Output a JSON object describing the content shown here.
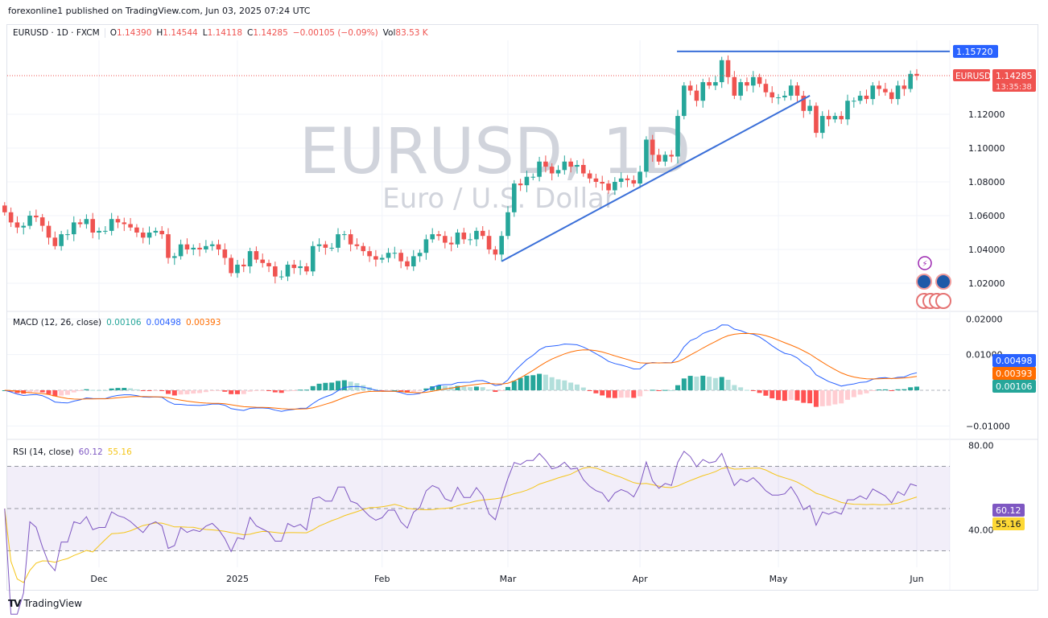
{
  "header": {
    "published": "forexonline1 published on TradingView.com, Jun 03, 2025 07:24 UTC"
  },
  "legend": {
    "symbol": "EURUSD · 1D · FXCM",
    "o_label": "O",
    "o": "1.14390",
    "h_label": "H",
    "h": "1.14544",
    "l_label": "L",
    "l": "1.14118",
    "c_label": "C",
    "c": "1.14285",
    "change": "−0.00105 (−0.09%)",
    "vol_label": "Vol",
    "vol": "83.53 K"
  },
  "watermark": {
    "title": "EURUSD, 1D",
    "subtitle": "Euro / U.S. Dollar"
  },
  "macd_legend": {
    "name": "MACD (12, 26, close)",
    "hist": "0.00106",
    "macd": "0.00498",
    "signal": "0.00393"
  },
  "rsi_legend": {
    "name": "RSI (14, close)",
    "rsi": "60.12",
    "ma": "55.16"
  },
  "footer": {
    "brand": "TradingView"
  },
  "colors": {
    "up": "#26a69a",
    "down": "#ef5350",
    "macd": "#2962ff",
    "signal": "#ff6d00",
    "rsi": "#7e57c2",
    "rsi_ma": "#f5c518",
    "trendline": "#3a6fd8"
  },
  "chart_data": [
    {
      "type": "candlestick",
      "pane": "price",
      "start_date": "2024-11-11",
      "close": [
        1.062,
        1.056,
        1.053,
        1.054,
        1.06,
        1.059,
        1.054,
        1.047,
        1.042,
        1.049,
        1.049,
        1.056,
        1.055,
        1.058,
        1.05,
        1.051,
        1.051,
        1.058,
        1.056,
        1.055,
        1.053,
        1.05,
        1.047,
        1.05,
        1.051,
        1.049,
        1.035,
        1.036,
        1.043,
        1.04,
        1.041,
        1.04,
        1.042,
        1.043,
        1.04,
        1.035,
        1.026,
        1.031,
        1.03,
        1.039,
        1.034,
        1.032,
        1.03,
        1.024,
        1.024,
        1.031,
        1.029,
        1.03,
        1.027,
        1.042,
        1.043,
        1.041,
        1.041,
        1.049,
        1.049,
        1.043,
        1.042,
        1.039,
        1.036,
        1.034,
        1.035,
        1.038,
        1.038,
        1.033,
        1.03,
        1.036,
        1.038,
        1.046,
        1.049,
        1.048,
        1.044,
        1.043,
        1.05,
        1.046,
        1.046,
        1.051,
        1.048,
        1.04,
        1.037,
        1.048,
        1.062,
        1.079,
        1.078,
        1.083,
        1.083,
        1.092,
        1.089,
        1.085,
        1.087,
        1.092,
        1.089,
        1.09,
        1.085,
        1.082,
        1.08,
        1.079,
        1.075,
        1.08,
        1.082,
        1.081,
        1.079,
        1.086,
        1.105,
        1.096,
        1.092,
        1.096,
        1.095,
        1.119,
        1.137,
        1.134,
        1.128,
        1.139,
        1.137,
        1.139,
        1.152,
        1.142,
        1.131,
        1.139,
        1.137,
        1.142,
        1.138,
        1.133,
        1.13,
        1.13,
        1.131,
        1.137,
        1.131,
        1.122,
        1.125,
        1.109,
        1.119,
        1.117,
        1.119,
        1.117,
        1.128,
        1.128,
        1.131,
        1.129,
        1.137,
        1.135,
        1.133,
        1.129,
        1.137,
        1.135,
        1.1439,
        1.14285
      ],
      "first_open": 1.066,
      "y_ticks": [
        "1.02000",
        "1.04000",
        "1.06000",
        "1.08000",
        "1.10000",
        "1.12000"
      ],
      "ylim": [
        1.01,
        1.165
      ],
      "x_ticks": [
        {
          "label": "Dec",
          "date": "2024-12-02"
        },
        {
          "label": "2025",
          "date": "2025-01-01"
        },
        {
          "label": "Feb",
          "date": "2025-02-03"
        },
        {
          "label": "Mar",
          "date": "2025-03-03"
        },
        {
          "label": "Apr",
          "date": "2025-04-01"
        },
        {
          "label": "May",
          "date": "2025-05-01"
        },
        {
          "label": "Jun",
          "date": "2025-06-02"
        }
      ],
      "price_label": {
        "symbol": "EURUSD",
        "price": "1.14285",
        "countdown": "13:35:38"
      },
      "drawings": [
        {
          "type": "horizontal",
          "price": 1.1572,
          "label": "1.15720",
          "from": "2025-04-16"
        },
        {
          "type": "trendline",
          "from": {
            "date": "2025-02-28",
            "price": 1.033
          },
          "to": {
            "date": "2025-05-08",
            "price": 1.131
          }
        }
      ]
    },
    {
      "type": "macd",
      "pane": "macd",
      "params": "12, 26, close",
      "y_ticks": [
        "0.02000",
        "0.01000",
        "-0.01000"
      ],
      "ylim": [
        -0.0135,
        0.0225
      ],
      "last": {
        "hist": "0.00106",
        "macd": "0.00498",
        "signal": "0.00393"
      }
    },
    {
      "type": "rsi",
      "pane": "rsi",
      "params": "14, close",
      "y_ticks": [
        "80.00",
        "40.00"
      ],
      "bands": [
        70,
        50,
        30
      ],
      "ylim": [
        20,
        84
      ],
      "last": {
        "rsi": "60.12",
        "ma": "55.16"
      }
    }
  ]
}
